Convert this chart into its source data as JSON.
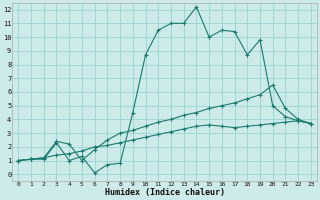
{
  "title": "",
  "xlabel": "Humidex (Indice chaleur)",
  "bg_color": "#cceae7",
  "grid_color": "#99d5d0",
  "line_color": "#1a7a6e",
  "xlim": [
    -0.5,
    23.5
  ],
  "ylim": [
    -0.5,
    12.5
  ],
  "xticks": [
    0,
    1,
    2,
    3,
    4,
    5,
    6,
    7,
    8,
    9,
    10,
    11,
    12,
    13,
    14,
    15,
    16,
    17,
    18,
    19,
    20,
    21,
    22,
    23
  ],
  "yticks": [
    0,
    1,
    2,
    3,
    4,
    5,
    6,
    7,
    8,
    9,
    10,
    11,
    12
  ],
  "line1_x": [
    0,
    1,
    2,
    3,
    4,
    5,
    6,
    7,
    8,
    9,
    10,
    11,
    12,
    13,
    14,
    15,
    16,
    17,
    18,
    19,
    20,
    21,
    22,
    23
  ],
  "line1_y": [
    1.0,
    1.1,
    1.1,
    2.3,
    1.0,
    1.3,
    0.1,
    0.7,
    0.8,
    4.5,
    8.7,
    10.5,
    11.0,
    11.0,
    12.2,
    10.0,
    10.5,
    10.4,
    8.7,
    9.8,
    5.0,
    4.2,
    3.9,
    3.7
  ],
  "line2_x": [
    0,
    1,
    2,
    3,
    4,
    5,
    6,
    7,
    8,
    9,
    10,
    11,
    12,
    13,
    14,
    15,
    16,
    17,
    18,
    19,
    20,
    21,
    22,
    23
  ],
  "line2_y": [
    1.0,
    1.1,
    1.2,
    2.4,
    2.2,
    1.0,
    1.8,
    2.5,
    3.0,
    3.2,
    3.5,
    3.8,
    4.0,
    4.3,
    4.5,
    4.8,
    5.0,
    5.2,
    5.5,
    5.8,
    6.5,
    4.8,
    4.0,
    3.7
  ],
  "line3_x": [
    0,
    1,
    2,
    3,
    4,
    5,
    6,
    7,
    8,
    9,
    10,
    11,
    12,
    13,
    14,
    15,
    16,
    17,
    18,
    19,
    20,
    21,
    22,
    23
  ],
  "line3_y": [
    1.0,
    1.1,
    1.2,
    1.4,
    1.5,
    1.7,
    2.0,
    2.1,
    2.3,
    2.5,
    2.7,
    2.9,
    3.1,
    3.3,
    3.5,
    3.6,
    3.5,
    3.4,
    3.5,
    3.6,
    3.7,
    3.8,
    3.9,
    3.7
  ]
}
